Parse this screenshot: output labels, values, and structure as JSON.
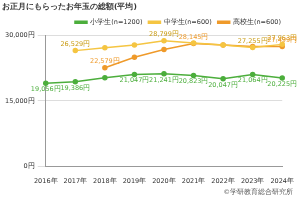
{
  "chart_data": {
    "type": "line",
    "title": "お正月にもらったお年玉の総額(平均)",
    "annotation": "©学研教育総合研究所",
    "categories": [
      "2016年",
      "2017年",
      "2018年",
      "2019年",
      "2020年",
      "2021年",
      "2022年",
      "2023年",
      "2024年"
    ],
    "series": [
      {
        "name": "小学生(n=1200)",
        "color": "#4cae3c",
        "values": [
          19056,
          19386,
          20300,
          21047,
          21241,
          20823,
          20047,
          21064,
          20225
        ],
        "value_labels": [
          "19,056円",
          "19,386円",
          null,
          "21,047円",
          "21,241円",
          "20,823円",
          "20,047円",
          "21,064円",
          "20,225円"
        ]
      },
      {
        "name": "中学生(n=600)",
        "color": "#f5c542",
        "values": [
          null,
          26529,
          27200,
          27800,
          28799,
          28300,
          27800,
          27255,
          27963
        ],
        "value_labels": [
          null,
          "26,529円",
          null,
          null,
          "28,799円",
          null,
          null,
          "27,255円",
          "27,963円"
        ]
      },
      {
        "name": "高校生(n=600)",
        "color": "#ef9a2a",
        "values": [
          null,
          null,
          22579,
          25000,
          26800,
          28145,
          27800,
          27500,
          27499
        ],
        "value_labels": [
          null,
          null,
          "22,579円",
          null,
          null,
          "28,145円",
          null,
          null,
          "27,499円"
        ]
      }
    ],
    "ylim": [
      0,
      30000
    ],
    "yticks": [
      {
        "value": 0,
        "label": "0円"
      },
      {
        "value": 15000,
        "label": "15,000円"
      },
      {
        "value": 30000,
        "label": "30,000円"
      }
    ],
    "grid": true,
    "legend": "top-right",
    "data_labels": true,
    "marker": "circle"
  }
}
